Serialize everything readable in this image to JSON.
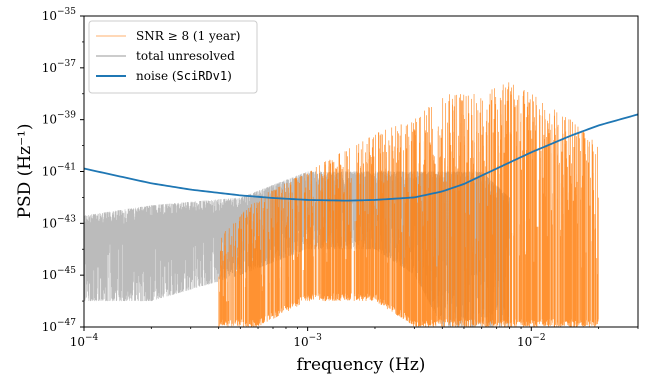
{
  "chart_data": {
    "type": "line",
    "xlabel": "frequency (Hz)",
    "ylabel": "PSD  (Hz⁻¹)",
    "x_scale": "log",
    "y_scale": "log",
    "xlim": [
      0.0001,
      0.03
    ],
    "ylim": [
      1e-47,
      1e-35
    ],
    "x_ticks": [
      {
        "value": 0.0001,
        "base": "10",
        "exp": "−4"
      },
      {
        "value": 0.001,
        "base": "10",
        "exp": "−3"
      },
      {
        "value": 0.01,
        "base": "10",
        "exp": "−2"
      }
    ],
    "y_ticks": [
      {
        "value": 1e-47,
        "base": "10",
        "exp": "−47"
      },
      {
        "value": 1e-45,
        "base": "10",
        "exp": "−45"
      },
      {
        "value": 1e-43,
        "base": "10",
        "exp": "−43"
      },
      {
        "value": 1e-41,
        "base": "10",
        "exp": "−41"
      },
      {
        "value": 1e-39,
        "base": "10",
        "exp": "−39"
      },
      {
        "value": 1e-37,
        "base": "10",
        "exp": "−37"
      },
      {
        "value": 1e-35,
        "base": "10",
        "exp": "−35"
      }
    ],
    "legend_position": "top-left",
    "series": [
      {
        "name": "SNR ≥ 8 (1 year)",
        "color": "#ff7f0e",
        "style": "dense spiky foreground spectrum",
        "envelope_x": [
          0.0004,
          0.0006,
          0.001,
          0.002,
          0.003,
          0.004,
          0.006,
          0.008,
          0.01,
          0.015,
          0.02
        ],
        "envelope_upper": [
          3e-44,
          1e-42,
          1e-41,
          3e-40,
          1e-39,
          1e-38,
          1e-38,
          3e-38,
          1e-38,
          1e-39,
          1e-40
        ],
        "envelope_lower": [
          1e-47,
          1e-47,
          1e-46,
          1e-46,
          1e-47,
          1e-47,
          1e-47,
          1e-47,
          1e-47,
          1e-47,
          1e-47
        ]
      },
      {
        "name": "total unresolved",
        "color": "#bbbbbb",
        "style": "dense noisy background spectrum",
        "envelope_x": [
          0.0001,
          0.0002,
          0.0005,
          0.001,
          0.002,
          0.003,
          0.004,
          0.006,
          0.008
        ],
        "envelope_upper": [
          2e-43,
          5e-43,
          1e-42,
          1e-41,
          1e-41,
          1e-41,
          1e-41,
          1e-41,
          1e-42
        ],
        "envelope_lower": [
          1e-46,
          1e-46,
          1e-45,
          1e-44,
          1e-44,
          1e-45,
          1e-47,
          1e-47,
          1e-47
        ]
      },
      {
        "name": "noise (SciRDv1)",
        "name_prefix": "noise (",
        "name_mono": "SciRDv1",
        "name_suffix": ")",
        "color": "#1f77b4",
        "x": [
          0.0001,
          0.0002,
          0.0003,
          0.0005,
          0.0007,
          0.001,
          0.0015,
          0.002,
          0.003,
          0.004,
          0.005,
          0.007,
          0.01,
          0.015,
          0.02,
          0.03
        ],
        "y": [
          1.3e-41,
          3.5e-42,
          2e-42,
          1.2e-42,
          9.5e-43,
          8e-43,
          7.5e-43,
          8e-43,
          1e-42,
          1.7e-42,
          3.3e-42,
          1.3e-41,
          5.5e-41,
          2.4e-40,
          6e-40,
          1.6e-39
        ]
      }
    ]
  }
}
